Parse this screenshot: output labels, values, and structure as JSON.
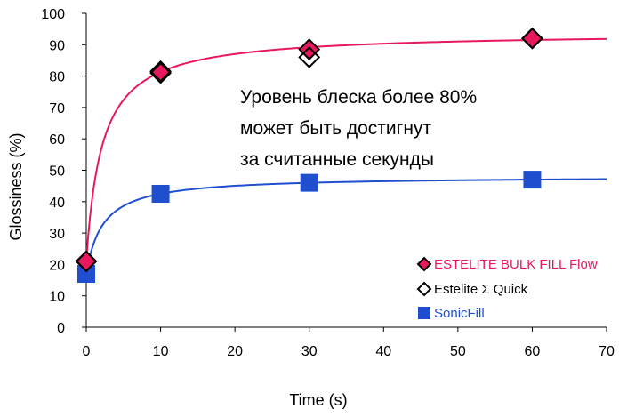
{
  "chart_data": {
    "type": "scatter",
    "xlabel": "Time (s)",
    "ylabel": "Glossiness (%)",
    "xlim": [
      0,
      70
    ],
    "ylim": [
      0,
      100
    ],
    "x_ticks": [
      0,
      10,
      20,
      30,
      40,
      50,
      60,
      70
    ],
    "y_ticks": [
      0,
      10,
      20,
      30,
      40,
      50,
      60,
      70,
      80,
      90,
      100
    ],
    "grid": false,
    "legend_position": "bottom-right",
    "annotation_lines": [
      "Уровень блеска более 80%",
      "может быть достигнут",
      "за считанные секунды"
    ],
    "series": [
      {
        "name": "ESTELITE BULK FILL Flow",
        "marker": "diamond-filled",
        "color": "#e8185d",
        "x": [
          0,
          10,
          30,
          60
        ],
        "y": [
          21,
          81.5,
          88.5,
          92
        ],
        "fit_curve": true
      },
      {
        "name": "Estelite Σ Quick",
        "marker": "diamond-open",
        "color": "#000000",
        "x": [
          0,
          10,
          30,
          60
        ],
        "y": [
          21,
          81,
          86,
          92
        ],
        "fit_curve": false
      },
      {
        "name": "SonicFill",
        "marker": "square-filled",
        "color": "#1f4fcf",
        "x": [
          0,
          10,
          30,
          60
        ],
        "y": [
          17,
          42.5,
          46,
          47
        ],
        "fit_curve": true
      }
    ]
  }
}
